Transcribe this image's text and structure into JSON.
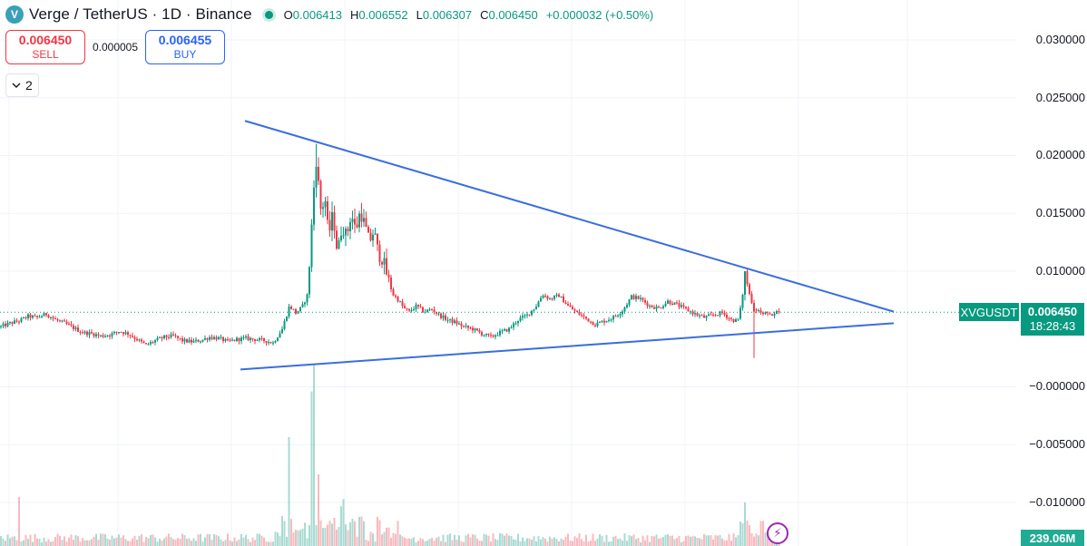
{
  "header": {
    "logo_glyph": "V",
    "title": "Verge / TetherUS · 1D · Binance",
    "ohlc": [
      {
        "k": "O",
        "v": "0.006413"
      },
      {
        "k": "H",
        "v": "0.006552"
      },
      {
        "k": "L",
        "v": "0.006307"
      },
      {
        "k": "C",
        "v": "0.006450"
      },
      {
        "k": "",
        "v": "+0.000032 (+0.50%)"
      }
    ]
  },
  "trade": {
    "sell_price": "0.006450",
    "sell_label": "SELL",
    "spread": "0.000005",
    "buy_price": "0.006455",
    "buy_label": "BUY"
  },
  "indicators": {
    "collapse_icon": "chevron-down-icon",
    "count": "2"
  },
  "price_axis": {
    "ticks": [
      "0.030000",
      "0.025000",
      "0.020000",
      "0.015000",
      "0.010000",
      "−0.000000",
      "−0.005000",
      "−0.010000"
    ]
  },
  "last_price": {
    "symbol": "XVGUSDT",
    "price": "0.006450",
    "countdown": "18:28:43"
  },
  "volume_label": "239.06M",
  "colors": {
    "up": "#089981",
    "down": "#f23645",
    "trendline": "#3a6ee0",
    "accent": "#2962ff"
  },
  "chart_data": {
    "type": "candlestick",
    "symbol": "XVGUSDT",
    "interval": "1D",
    "exchange": "Binance",
    "ylim": [
      -0.0125,
      0.0315
    ],
    "y_ticks": [
      0.03,
      0.025,
      0.02,
      0.015,
      0.01,
      0.0,
      -0.005,
      -0.01
    ],
    "last_close": 0.00645,
    "price_series": [
      [
        0,
        0.0052
      ],
      [
        10,
        0.0055
      ],
      [
        20,
        0.0057
      ],
      [
        30,
        0.0061
      ],
      [
        40,
        0.006
      ],
      [
        50,
        0.0063
      ],
      [
        60,
        0.0058
      ],
      [
        70,
        0.0055
      ],
      [
        80,
        0.0051
      ],
      [
        90,
        0.0047
      ],
      [
        100,
        0.0046
      ],
      [
        110,
        0.0044
      ],
      [
        120,
        0.0045
      ],
      [
        130,
        0.0048
      ],
      [
        140,
        0.0046
      ],
      [
        150,
        0.0041
      ],
      [
        160,
        0.0036
      ],
      [
        170,
        0.004
      ],
      [
        180,
        0.0043
      ],
      [
        190,
        0.0044
      ],
      [
        200,
        0.004
      ],
      [
        210,
        0.0039
      ],
      [
        220,
        0.004
      ],
      [
        230,
        0.0043
      ],
      [
        240,
        0.0042
      ],
      [
        250,
        0.0039
      ],
      [
        260,
        0.0041
      ],
      [
        270,
        0.0042
      ],
      [
        280,
        0.0041
      ],
      [
        290,
        0.004
      ],
      [
        300,
        0.0038
      ],
      [
        310,
        0.005
      ],
      [
        318,
        0.007
      ],
      [
        325,
        0.0064
      ],
      [
        332,
        0.0069
      ],
      [
        338,
        0.008
      ],
      [
        343,
        0.0145
      ],
      [
        347,
        0.02
      ],
      [
        350,
        0.0175
      ],
      [
        353,
        0.015
      ],
      [
        357,
        0.0165
      ],
      [
        361,
        0.013
      ],
      [
        366,
        0.015
      ],
      [
        371,
        0.0115
      ],
      [
        376,
        0.014
      ],
      [
        381,
        0.013
      ],
      [
        386,
        0.015
      ],
      [
        391,
        0.0135
      ],
      [
        396,
        0.0152
      ],
      [
        401,
        0.014
      ],
      [
        406,
        0.0125
      ],
      [
        411,
        0.0135
      ],
      [
        416,
        0.0115
      ],
      [
        421,
        0.011
      ],
      [
        426,
        0.0095
      ],
      [
        432,
        0.008
      ],
      [
        438,
        0.0075
      ],
      [
        444,
        0.0068
      ],
      [
        450,
        0.0065
      ],
      [
        458,
        0.007
      ],
      [
        466,
        0.0065
      ],
      [
        475,
        0.0067
      ],
      [
        483,
        0.0062
      ],
      [
        492,
        0.0058
      ],
      [
        500,
        0.0056
      ],
      [
        510,
        0.0052
      ],
      [
        520,
        0.005
      ],
      [
        530,
        0.0046
      ],
      [
        540,
        0.0043
      ],
      [
        550,
        0.0047
      ],
      [
        560,
        0.005
      ],
      [
        570,
        0.0058
      ],
      [
        580,
        0.0062
      ],
      [
        590,
        0.007
      ],
      [
        597,
        0.008
      ],
      [
        605,
        0.0076
      ],
      [
        615,
        0.0079
      ],
      [
        625,
        0.007
      ],
      [
        635,
        0.0064
      ],
      [
        645,
        0.0059
      ],
      [
        655,
        0.0054
      ],
      [
        665,
        0.0057
      ],
      [
        675,
        0.006
      ],
      [
        685,
        0.0066
      ],
      [
        695,
        0.0078
      ],
      [
        705,
        0.0076
      ],
      [
        715,
        0.007
      ],
      [
        725,
        0.0068
      ],
      [
        735,
        0.0074
      ],
      [
        745,
        0.0071
      ],
      [
        755,
        0.0067
      ],
      [
        765,
        0.0063
      ],
      [
        775,
        0.006
      ],
      [
        785,
        0.0062
      ],
      [
        795,
        0.0064
      ],
      [
        805,
        0.0058
      ],
      [
        812,
        0.0057
      ],
      [
        816,
        0.007
      ],
      [
        820,
        0.0098
      ],
      [
        825,
        0.008
      ],
      [
        830,
        0.0068
      ],
      [
        835,
        0.0066
      ],
      [
        840,
        0.0062
      ],
      [
        845,
        0.0065
      ],
      [
        850,
        0.006
      ],
      [
        855,
        0.0064
      ],
      [
        858,
        0.00645
      ]
    ],
    "wick_extremes": [
      {
        "x": 347,
        "high": 0.021
      },
      {
        "x": 820,
        "high": 0.01
      },
      {
        "x": 831,
        "low": 0.0025
      }
    ],
    "trendlines": [
      {
        "name": "upper",
        "from": [
          270,
          0.023
        ],
        "to": [
          985,
          0.0065
        ]
      },
      {
        "name": "lower",
        "from": [
          265,
          0.0015
        ],
        "to": [
          985,
          0.0055
        ]
      }
    ],
    "volume_spikes": [
      [
        20,
        0.09
      ],
      [
        318,
        0.16
      ],
      [
        342,
        0.28
      ],
      [
        345,
        0.3
      ],
      [
        350,
        0.11
      ],
      [
        376,
        0.06
      ],
      [
        820,
        0.07
      ]
    ],
    "volume_last": "239.06M"
  }
}
